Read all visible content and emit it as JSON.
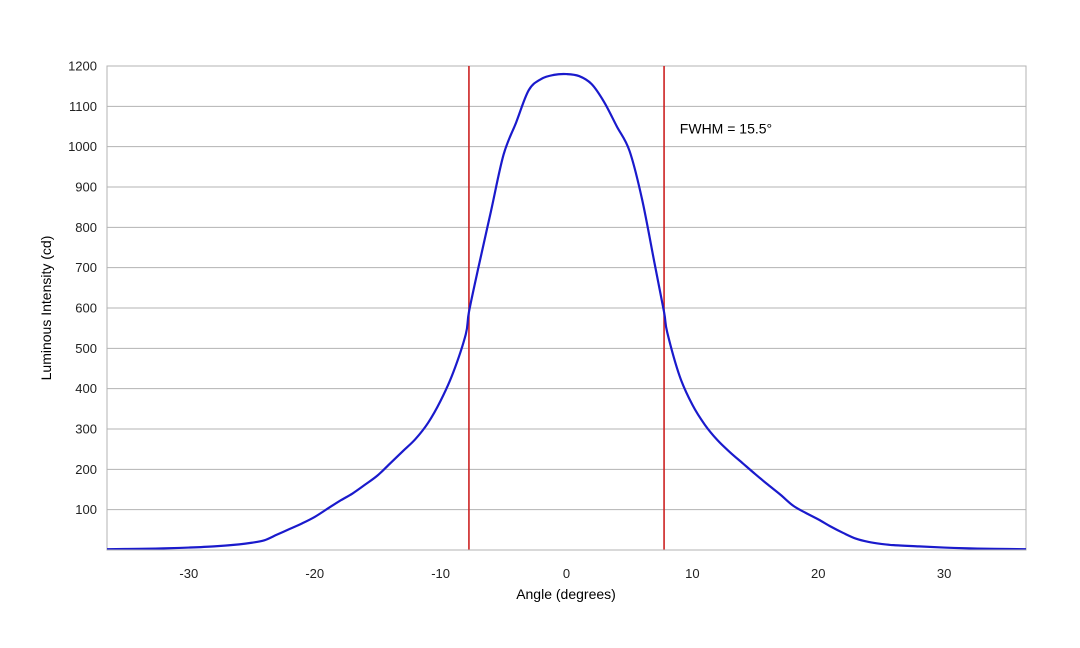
{
  "chart_data": {
    "type": "line",
    "xlabel": "Angle (degrees)",
    "ylabel": "Luminous Intensity (cd)",
    "xlim": [
      -36.5,
      36.5
    ],
    "ylim": [
      0,
      1200
    ],
    "x_ticks": [
      -30,
      -20,
      -10,
      0,
      10,
      20,
      30
    ],
    "x_tick_labels": [
      "-30",
      "-20",
      "-10",
      "0",
      "10",
      "20",
      "30"
    ],
    "y_ticks": [
      100,
      200,
      300,
      400,
      500,
      600,
      700,
      800,
      900,
      1000,
      1100,
      1200
    ],
    "y_tick_labels": [
      "100",
      "200",
      "300",
      "400",
      "500",
      "600",
      "700",
      "800",
      "900",
      "1000",
      "1100",
      "1200"
    ],
    "grid": "horizontal",
    "legend": "none",
    "series": [
      {
        "color": "#1a1acc",
        "x": [
          -36.5,
          -34,
          -32,
          -30,
          -28,
          -26,
          -25,
          -24,
          -23,
          -22,
          -21,
          -20,
          -19,
          -18,
          -17,
          -16,
          -15,
          -14,
          -13,
          -12,
          -11,
          -10,
          -9,
          -8,
          -7.75,
          -7,
          -6,
          -5,
          -4,
          -3,
          -2,
          -1,
          0,
          1,
          2,
          3,
          4,
          5,
          6,
          7,
          7.75,
          8,
          9,
          10,
          11,
          12,
          13,
          14,
          15,
          16,
          17,
          18,
          19,
          20,
          21,
          22,
          23,
          24,
          25,
          26,
          28,
          30,
          32,
          34,
          36.5
        ],
        "y": [
          2,
          3,
          4,
          6,
          9,
          14,
          18,
          24,
          38,
          52,
          66,
          82,
          102,
          122,
          140,
          162,
          185,
          215,
          245,
          275,
          315,
          370,
          440,
          535,
          590,
          700,
          840,
          980,
          1060,
          1140,
          1168,
          1178,
          1180,
          1175,
          1155,
          1110,
          1050,
          990,
          870,
          710,
          590,
          540,
          430,
          360,
          310,
          272,
          242,
          215,
          188,
          162,
          137,
          110,
          92,
          76,
          58,
          42,
          28,
          20,
          15,
          12,
          9,
          6,
          4,
          3,
          2
        ]
      }
    ],
    "reference_lines": [
      {
        "axis": "x",
        "value": -7.75,
        "color": "#cc2222"
      },
      {
        "axis": "x",
        "value": 7.75,
        "color": "#cc2222"
      }
    ],
    "annotations": [
      {
        "text": "FWHM = 15.5°",
        "x": 9,
        "y": 1045
      }
    ]
  }
}
